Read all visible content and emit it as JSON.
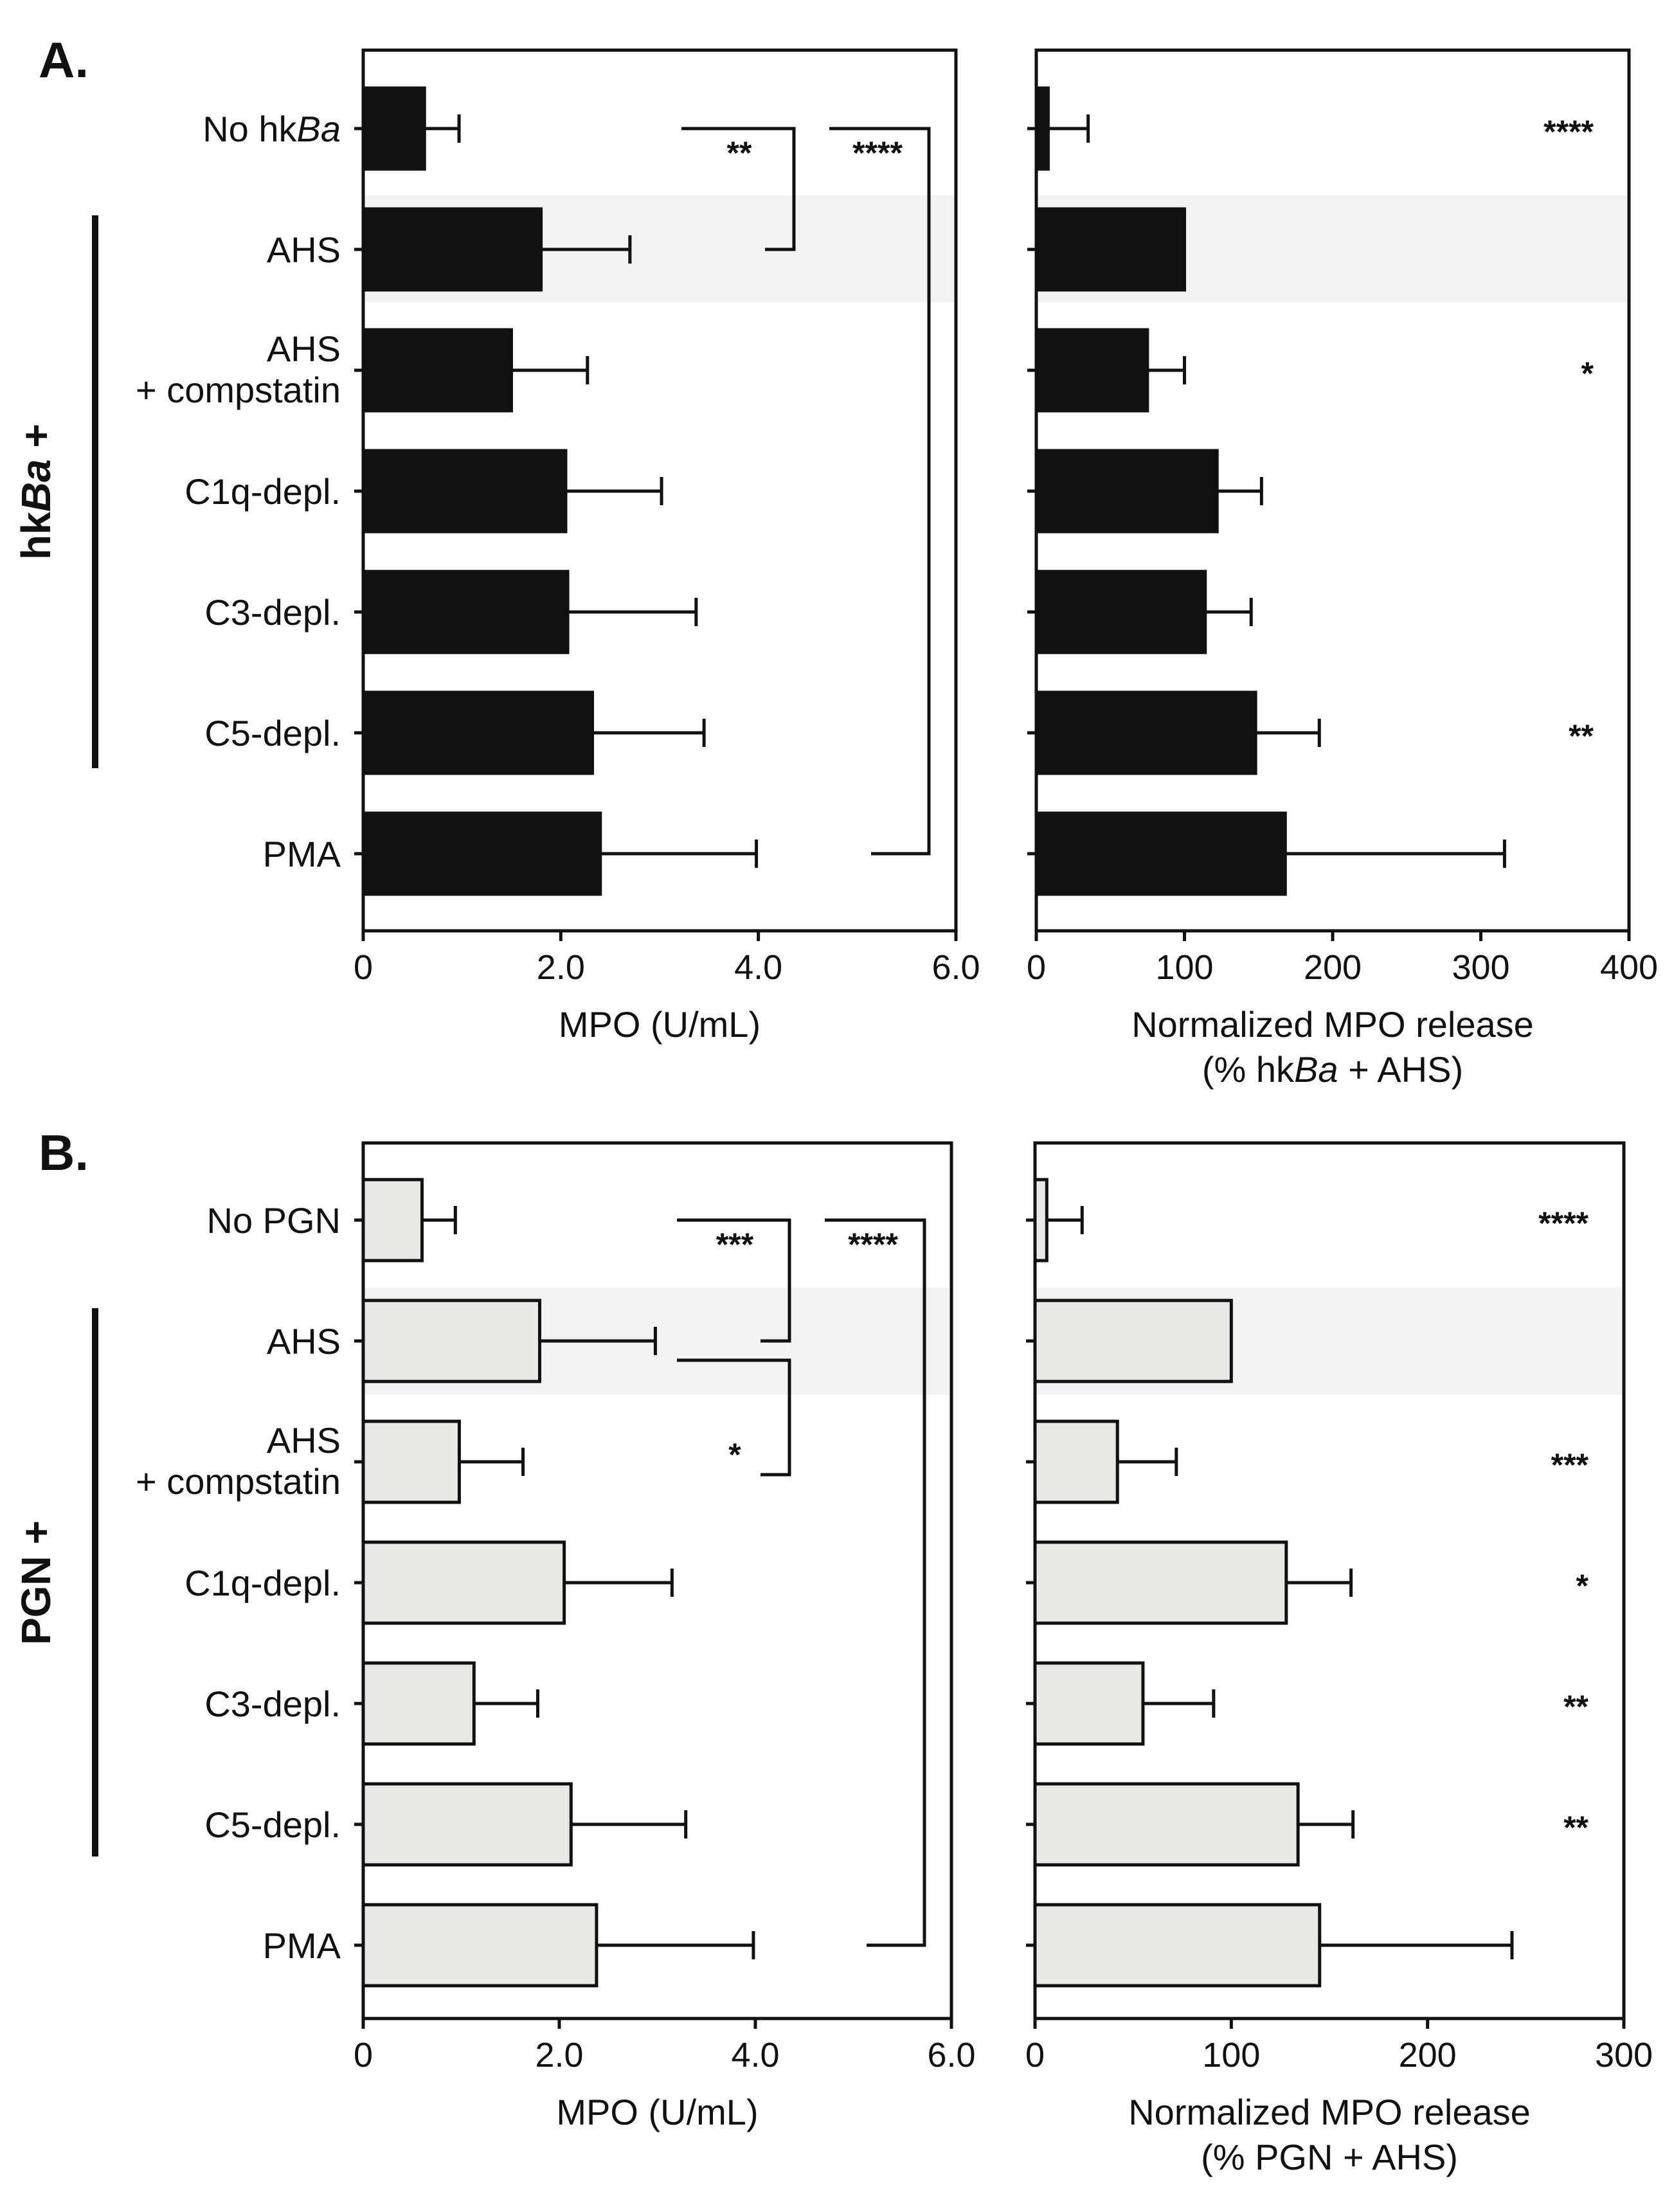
{
  "figure": {
    "panels": [
      {
        "id": "A",
        "panel_label": "A.",
        "group_label_prefix": "hk",
        "group_label_italic": "Ba",
        "group_label_suffix": " +"
      },
      {
        "id": "B",
        "panel_label": "B.",
        "group_label_prefix": "PGN +",
        "group_label_italic": "",
        "group_label_suffix": ""
      }
    ]
  },
  "colors": {
    "panelA_bar": "#111111",
    "panelB_bar": "#e8e8e4",
    "highlight": "#f2f2f2",
    "ink": "#111111"
  },
  "chart_data": [
    {
      "type": "bar",
      "orientation": "horizontal",
      "panel": "A-left",
      "categories": [
        "No hkBa",
        "AHS",
        "AHS + compstatin",
        "C1q-depl.",
        "C3-depl.",
        "C5-depl.",
        "PMA"
      ],
      "category_lines": [
        [
          {
            "t": "No hk"
          },
          {
            "t": "Ba",
            "i": true
          }
        ],
        [
          {
            "t": "AHS"
          }
        ],
        [
          {
            "t": "AHS"
          },
          {
            "t": "+ compstatin",
            "br": true
          }
        ],
        [
          {
            "t": "C1q-depl."
          }
        ],
        [
          {
            "t": "C3-depl."
          }
        ],
        [
          {
            "t": "C5-depl."
          }
        ],
        [
          {
            "t": "PMA"
          }
        ]
      ],
      "values": [
        0.62,
        1.8,
        1.5,
        2.05,
        2.07,
        2.32,
        2.4
      ],
      "errors": [
        0.35,
        0.9,
        0.77,
        0.97,
        1.3,
        1.13,
        1.58
      ],
      "xlim": [
        0,
        6.0
      ],
      "xticks": [
        "0",
        "2.0",
        "4.0",
        "6.0"
      ],
      "xtick_values": [
        0,
        2,
        4,
        6
      ],
      "xlabel": [
        "MPO (U/mL)"
      ],
      "highlight_category": "AHS",
      "brackets": [
        {
          "from": 0,
          "to": 1,
          "label": "**"
        },
        {
          "from": 0,
          "to": 6,
          "label": "****"
        }
      ]
    },
    {
      "type": "bar",
      "orientation": "horizontal",
      "panel": "A-right",
      "categories": [
        "No hkBa",
        "AHS",
        "AHS + compstatin",
        "C1q-depl.",
        "C3-depl.",
        "C5-depl.",
        "PMA"
      ],
      "values": [
        8,
        100,
        75,
        122,
        114,
        148,
        168
      ],
      "errors": [
        27,
        0,
        25,
        30,
        31,
        43,
        148
      ],
      "xlim": [
        0,
        400
      ],
      "xticks": [
        "0",
        "100",
        "200",
        "300",
        "400"
      ],
      "xtick_values": [
        0,
        100,
        200,
        300,
        400
      ],
      "xlabel": [
        "Normalized MPO release",
        "(% hkBa + AHS)"
      ],
      "highlight_category": "AHS",
      "significance": [
        "****",
        "",
        "*",
        "",
        "",
        "**",
        ""
      ]
    },
    {
      "type": "bar",
      "orientation": "horizontal",
      "panel": "B-left",
      "categories": [
        "No PGN",
        "AHS",
        "AHS + compstatin",
        "C1q-depl.",
        "C3-depl.",
        "C5-depl.",
        "PMA"
      ],
      "category_lines": [
        [
          {
            "t": "No PGN"
          }
        ],
        [
          {
            "t": "AHS"
          }
        ],
        [
          {
            "t": "AHS"
          },
          {
            "t": "+ compstatin",
            "br": true
          }
        ],
        [
          {
            "t": "C1q-depl."
          }
        ],
        [
          {
            "t": "C3-depl."
          }
        ],
        [
          {
            "t": "C5-depl."
          }
        ],
        [
          {
            "t": "PMA"
          }
        ]
      ],
      "values": [
        0.6,
        1.8,
        0.98,
        2.05,
        1.13,
        2.12,
        2.38
      ],
      "errors": [
        0.34,
        1.18,
        0.65,
        1.1,
        0.65,
        1.17,
        1.6
      ],
      "xlim": [
        0,
        6.0
      ],
      "xticks": [
        "0",
        "2.0",
        "4.0",
        "6.0"
      ],
      "xtick_values": [
        0,
        2,
        4,
        6
      ],
      "xlabel": [
        "MPO (U/mL)"
      ],
      "highlight_category": "AHS",
      "brackets": [
        {
          "from": 0,
          "to": 1,
          "label": "***"
        },
        {
          "from": 1,
          "to": 2,
          "label": "*"
        },
        {
          "from": 0,
          "to": 6,
          "label": "****"
        }
      ]
    },
    {
      "type": "bar",
      "orientation": "horizontal",
      "panel": "B-right",
      "categories": [
        "No PGN",
        "AHS",
        "AHS + compstatin",
        "C1q-depl.",
        "C3-depl.",
        "C5-depl.",
        "PMA"
      ],
      "values": [
        6,
        100,
        42,
        128,
        55,
        134,
        145
      ],
      "errors": [
        18,
        0,
        30,
        33,
        36,
        28,
        98
      ],
      "xlim": [
        0,
        300
      ],
      "xticks": [
        "0",
        "100",
        "200",
        "300"
      ],
      "xtick_values": [
        0,
        100,
        200,
        300
      ],
      "xlabel": [
        "Normalized MPO release",
        "(% PGN + AHS)"
      ],
      "highlight_category": "AHS",
      "significance": [
        "****",
        "",
        "***",
        "*",
        "**",
        "**",
        ""
      ]
    }
  ]
}
